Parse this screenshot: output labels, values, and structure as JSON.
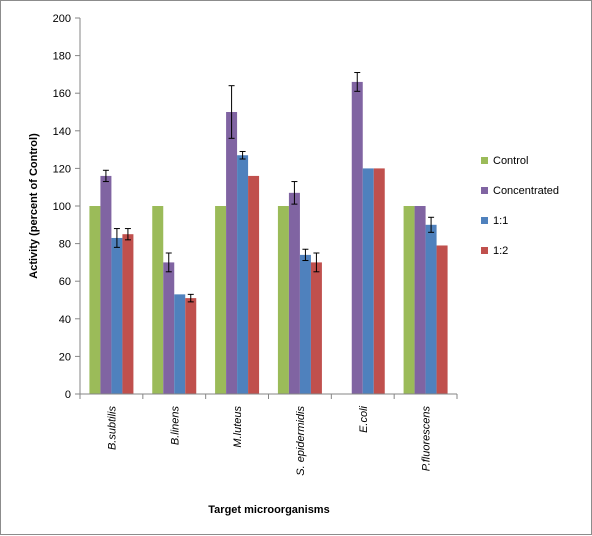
{
  "chart_data": {
    "type": "bar",
    "title": "",
    "xlabel": "Target microorganisms",
    "ylabel": "Activity (percent of Control)",
    "ylim": [
      0,
      200
    ],
    "yticks": [
      0,
      20,
      40,
      60,
      80,
      100,
      120,
      140,
      160,
      180,
      200
    ],
    "categories": [
      "B.subtilis",
      "B.linens",
      "M.luteus",
      "S. epidermidis",
      "E.coli",
      "P.fluorescens"
    ],
    "grid": false,
    "legend_position": "right",
    "series": [
      {
        "name": "Control",
        "color": "#9bbb59",
        "values": [
          100,
          100,
          100,
          100,
          null,
          100
        ],
        "errors": [
          null,
          null,
          null,
          null,
          null,
          null
        ]
      },
      {
        "name": "Concentrated",
        "color": "#8064a2",
        "values": [
          116,
          70,
          150,
          107,
          166,
          100
        ],
        "errors": [
          3,
          5,
          14,
          6,
          5,
          null
        ]
      },
      {
        "name": "1:1",
        "color": "#4f81bd",
        "values": [
          83,
          53,
          127,
          74,
          120,
          90
        ],
        "errors": [
          5,
          null,
          2,
          3,
          null,
          4
        ]
      },
      {
        "name": "1:2",
        "color": "#c0504d",
        "values": [
          85,
          51,
          116,
          70,
          120,
          79
        ],
        "errors": [
          3,
          2,
          null,
          5,
          null,
          null
        ]
      }
    ]
  }
}
